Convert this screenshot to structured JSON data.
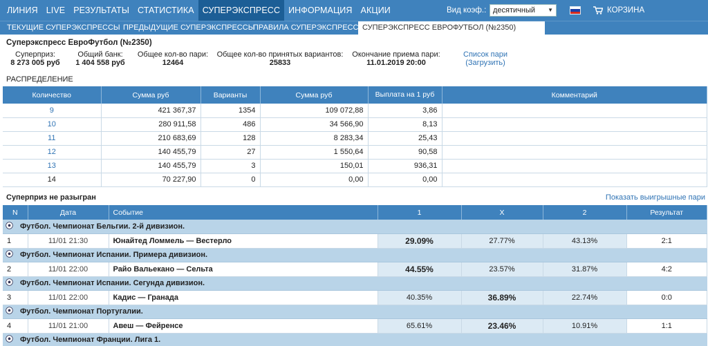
{
  "topnav": {
    "items": [
      "ЛИНИЯ",
      "LIVE",
      "РЕЗУЛЬТАТЫ",
      "СТАТИСТИКА",
      "СУПЕРЭКСПРЕСС",
      "ИНФОРМАЦИЯ",
      "АКЦИИ"
    ],
    "active_index": 4,
    "coef_label": "Вид коэф.:",
    "coef_value": "десятичный",
    "cart_label": "КОРЗИНА"
  },
  "subnav": {
    "tabs": [
      "ТЕКУЩИЕ СУПЕРЭКСПРЕССЫ",
      "ПРЕДЫДУЩИЕ СУПЕРЭКСПРЕССЫ",
      "ПРАВИЛА СУПЕРЭКСПРЕССА",
      "СУПЕРЭКСПРЕСС ЕВРОФУТБОЛ (№2350)"
    ],
    "active_index": 3
  },
  "title": "Суперэкспресс ЕвроФутбол (№2350)",
  "stats": {
    "superprize_label": "Суперприз:",
    "superprize_value": "8 273 005 руб",
    "bank_label": "Общий банк:",
    "bank_value": "1 404 558 руб",
    "pairs_label": "Общее кол-во пари:",
    "pairs_value": "12464",
    "variants_label": "Общее кол-во принятых вариантов:",
    "variants_value": "25833",
    "end_label": "Окончание приема пари:",
    "end_value": "11.01.2019 20:00",
    "list_link": "Список пари",
    "load_link": "(Загрузить)"
  },
  "distribution": {
    "label": "РАСПРЕДЕЛЕНИЕ",
    "headers": [
      "Количество",
      "Сумма руб",
      "Варианты",
      "Сумма руб",
      "Выплата на 1 руб",
      "Комментарий"
    ],
    "rows": [
      {
        "count": "9",
        "sum": "421 367,37",
        "variants": "1354",
        "sum2": "109 072,88",
        "payout": "3,86",
        "comment": ""
      },
      {
        "count": "10",
        "sum": "280 911,58",
        "variants": "486",
        "sum2": "34 566,90",
        "payout": "8,13",
        "comment": ""
      },
      {
        "count": "11",
        "sum": "210 683,69",
        "variants": "128",
        "sum2": "8 283,34",
        "payout": "25,43",
        "comment": ""
      },
      {
        "count": "12",
        "sum": "140 455,79",
        "variants": "27",
        "sum2": "1 550,64",
        "payout": "90,58",
        "comment": ""
      },
      {
        "count": "13",
        "sum": "140 455,79",
        "variants": "3",
        "sum2": "150,01",
        "payout": "936,31",
        "comment": ""
      },
      {
        "count": "14",
        "sum": "70 227,90",
        "variants": "0",
        "sum2": "0,00",
        "payout": "0,00",
        "comment": ""
      }
    ]
  },
  "nodraw_label": "Суперприз не разыгран",
  "show_pairs_link": "Показать выигрышные пари",
  "events": {
    "headers": [
      "N",
      "Дата",
      "Событие",
      "1",
      "X",
      "2",
      "Результат"
    ],
    "groups": [
      {
        "league": "Футбол. Чемпионат Бельгии. 2-й дивизион.",
        "n": "1",
        "date": "11/01 21:30",
        "event": "Юнайтед Ломмель — Вестерло",
        "p1": "29.09%",
        "px": "27.77%",
        "p2": "43.13%",
        "result": "2:1",
        "best": "p1"
      },
      {
        "league": "Футбол. Чемпионат Испании. Примера дивизион.",
        "n": "2",
        "date": "11/01 22:00",
        "event": "Райо Вальекано — Сельта",
        "p1": "44.55%",
        "px": "23.57%",
        "p2": "31.87%",
        "result": "4:2",
        "best": "p1"
      },
      {
        "league": "Футбол. Чемпионат Испании. Сегунда дивизион.",
        "n": "3",
        "date": "11/01 22:00",
        "event": "Кадис — Гранада",
        "p1": "40.35%",
        "px": "36.89%",
        "p2": "22.74%",
        "result": "0:0",
        "best": "px"
      },
      {
        "league": "Футбол. Чемпионат Португалии.",
        "n": "4",
        "date": "11/01 21:00",
        "event": "Авеш — Фейренсе",
        "p1": "65.61%",
        "px": "23.46%",
        "p2": "10.91%",
        "result": "1:1",
        "best": "px"
      }
    ],
    "trailing_league": "Футбол. Чемпионат Франции. Лига 1."
  },
  "colors": {
    "nav": "#3f82bd",
    "nav_active": "#1c5e96",
    "league_row": "#b9d4e8",
    "pct_cell": "#dceaf4",
    "link": "#2f73b4"
  }
}
